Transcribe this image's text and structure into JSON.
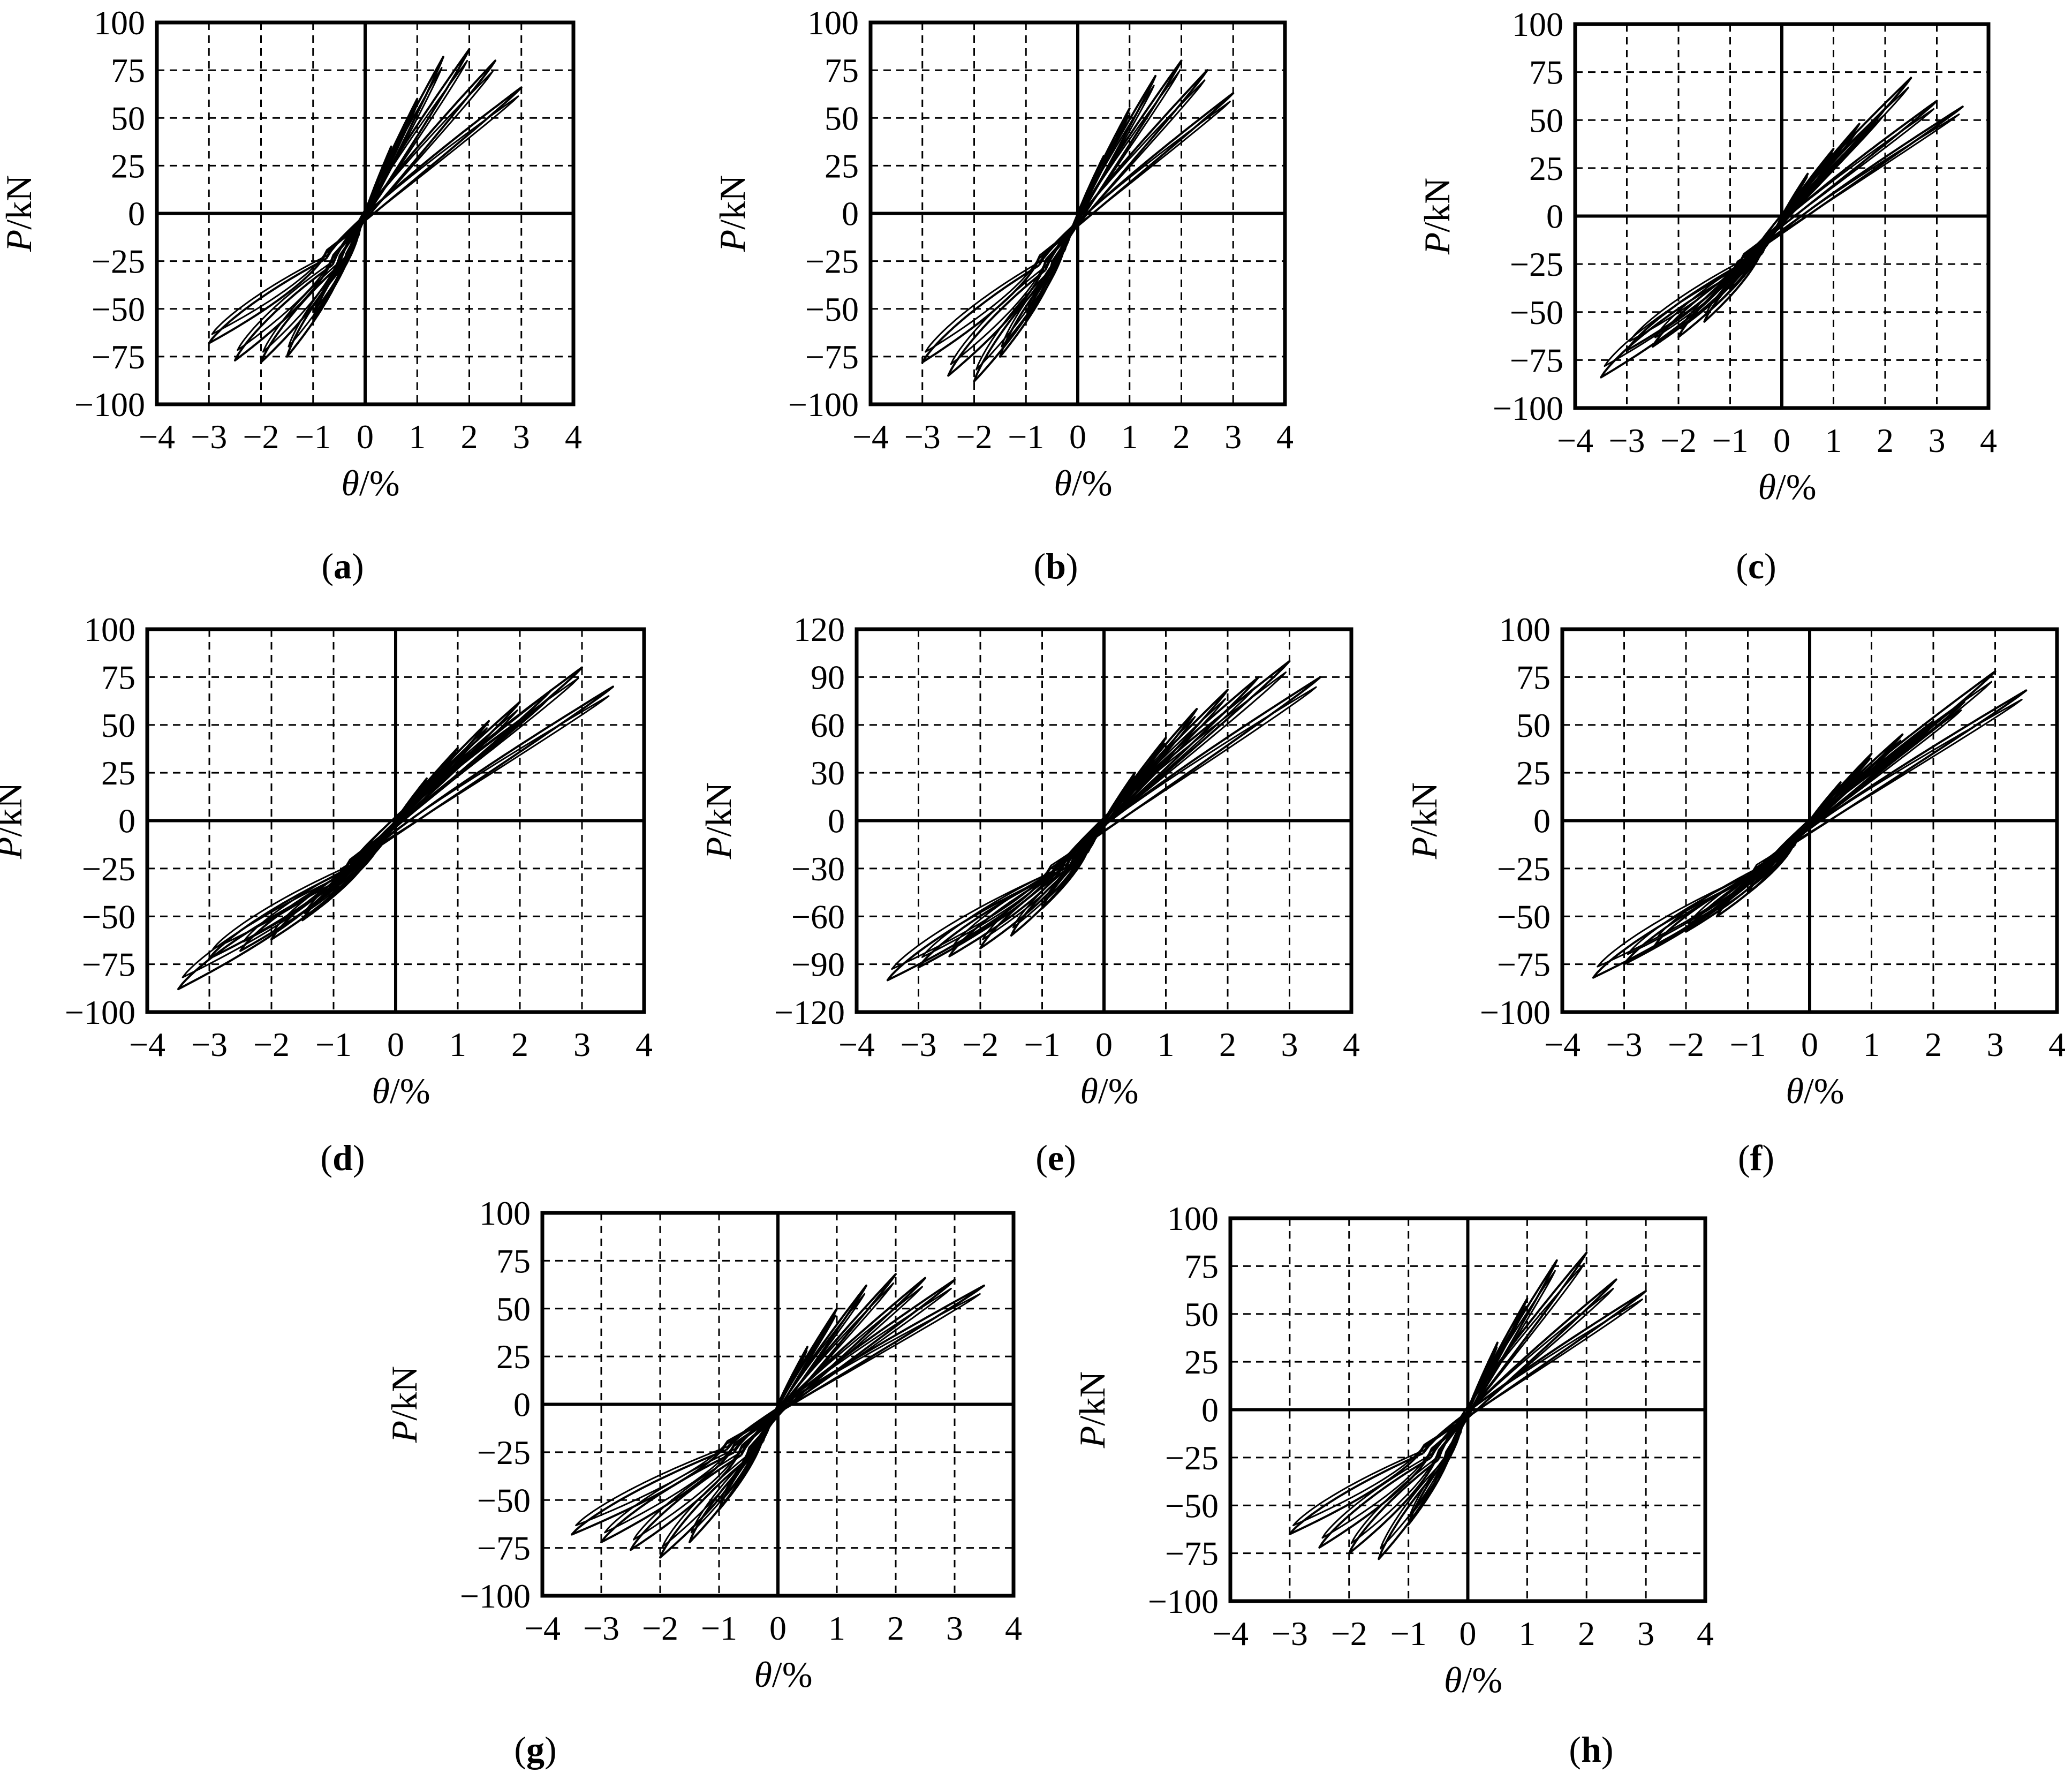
{
  "figure": {
    "panel_labels": [
      "(a)",
      "(b)",
      "(c)",
      "(d)",
      "(e)",
      "(f)",
      "(g)",
      "(h)"
    ]
  },
  "chart_data": [
    {
      "panel": "a",
      "type": "line",
      "xlabel": "θ/%",
      "ylabel": "P/kN",
      "xlim": [
        -4,
        4
      ],
      "ylim": [
        -100,
        100
      ],
      "xticks": [
        "−4",
        "−3",
        "−2",
        "−1",
        "0",
        "1",
        "2",
        "3",
        "4"
      ],
      "yticks": [
        "−100",
        "−75",
        "−50",
        "−25",
        "0",
        "25",
        "50",
        "75",
        "100"
      ],
      "grid": "dashed",
      "cycles": [
        {
          "amplitude": 0.5,
          "pmax": 35,
          "pmin": -33
        },
        {
          "amplitude": 1.0,
          "pmax": 60,
          "pmin": -55
        },
        {
          "amplitude": 1.5,
          "pmax": 82,
          "pmin": -75
        },
        {
          "amplitude": 2.0,
          "pmax": 86,
          "pmin": -78
        },
        {
          "amplitude": 2.5,
          "pmax": 80,
          "pmin": -77
        },
        {
          "amplitude": 3.0,
          "pmax": 66,
          "pmin": -68
        }
      ]
    },
    {
      "panel": "b",
      "type": "line",
      "xlabel": "θ/%",
      "ylabel": "P/kN",
      "xlim": [
        -4,
        4
      ],
      "ylim": [
        -100,
        100
      ],
      "xticks": [
        "−4",
        "−3",
        "−2",
        "−1",
        "0",
        "1",
        "2",
        "3",
        "4"
      ],
      "yticks": [
        "−100",
        "−75",
        "−50",
        "−25",
        "0",
        "25",
        "50",
        "75",
        "100"
      ],
      "grid": "dashed",
      "cycles": [
        {
          "amplitude": 0.5,
          "pmax": 30,
          "pmin": -30
        },
        {
          "amplitude": 1.0,
          "pmax": 55,
          "pmin": -55
        },
        {
          "amplitude": 1.5,
          "pmax": 72,
          "pmin": -75
        },
        {
          "amplitude": 2.0,
          "pmax": 80,
          "pmin": -88
        },
        {
          "amplitude": 2.5,
          "pmax": 75,
          "pmin": -85
        },
        {
          "amplitude": 3.0,
          "pmax": 63,
          "pmin": -78
        }
      ]
    },
    {
      "panel": "c",
      "type": "line",
      "xlabel": "θ/%",
      "ylabel": "P/kN",
      "xlim": [
        -4,
        4
      ],
      "ylim": [
        -100,
        100
      ],
      "xticks": [
        "−4",
        "−3",
        "−2",
        "−1",
        "0",
        "1",
        "2",
        "3",
        "4"
      ],
      "yticks": [
        "−100",
        "−75",
        "−50",
        "−25",
        "0",
        "25",
        "50",
        "75",
        "100"
      ],
      "grid": "dashed",
      "cycles": [
        {
          "amplitude": 0.5,
          "pmax": 22,
          "pmin": -22
        },
        {
          "amplitude": 1.0,
          "pmax": 35,
          "pmin": -38
        },
        {
          "amplitude": 1.5,
          "pmax": 48,
          "pmin": -55
        },
        {
          "amplitude": 2.0,
          "pmax": 56,
          "pmin": -63
        },
        {
          "amplitude": 2.5,
          "pmax": 72,
          "pmin": -68
        },
        {
          "amplitude": 3.0,
          "pmax": 60,
          "pmin": -70
        },
        {
          "amplitude": 3.5,
          "pmax": 57,
          "pmin": -84
        }
      ]
    },
    {
      "panel": "d",
      "type": "line",
      "xlabel": "θ/%",
      "ylabel": "P/kN",
      "xlim": [
        -4,
        4
      ],
      "ylim": [
        -100,
        100
      ],
      "xticks": [
        "−4",
        "−3",
        "−2",
        "−1",
        "0",
        "1",
        "2",
        "3",
        "4"
      ],
      "yticks": [
        "−100",
        "−75",
        "−50",
        "−25",
        "0",
        "25",
        "50",
        "75",
        "100"
      ],
      "grid": "dashed",
      "cycles": [
        {
          "amplitude": 0.5,
          "pmax": 22,
          "pmin": -22
        },
        {
          "amplitude": 1.0,
          "pmax": 38,
          "pmin": -38
        },
        {
          "amplitude": 1.5,
          "pmax": 52,
          "pmin": -52
        },
        {
          "amplitude": 2.0,
          "pmax": 62,
          "pmin": -62
        },
        {
          "amplitude": 2.5,
          "pmax": 68,
          "pmin": -68
        },
        {
          "amplitude": 3.0,
          "pmax": 80,
          "pmin": -72
        },
        {
          "amplitude": 3.5,
          "pmax": 70,
          "pmin": -88
        }
      ]
    },
    {
      "panel": "e",
      "type": "line",
      "xlabel": "θ/%",
      "ylabel": "P/kN",
      "xlim": [
        -4,
        4
      ],
      "ylim": [
        -120,
        120
      ],
      "xticks": [
        "−4",
        "−3",
        "−2",
        "−1",
        "0",
        "1",
        "2",
        "3",
        "4"
      ],
      "yticks": [
        "−120",
        "−90",
        "−60",
        "−30",
        "0",
        "30",
        "60",
        "90",
        "120"
      ],
      "grid": "dashed",
      "cycles": [
        {
          "amplitude": 0.5,
          "pmax": 30,
          "pmin": -30
        },
        {
          "amplitude": 1.0,
          "pmax": 52,
          "pmin": -55
        },
        {
          "amplitude": 1.5,
          "pmax": 70,
          "pmin": -72
        },
        {
          "amplitude": 2.0,
          "pmax": 82,
          "pmin": -80
        },
        {
          "amplitude": 2.5,
          "pmax": 90,
          "pmin": -85
        },
        {
          "amplitude": 3.0,
          "pmax": 100,
          "pmin": -92
        },
        {
          "amplitude": 3.5,
          "pmax": 90,
          "pmin": -100
        }
      ]
    },
    {
      "panel": "f",
      "type": "line",
      "xlabel": "θ/%",
      "ylabel": "P/kN",
      "xlim": [
        -4,
        4
      ],
      "ylim": [
        -100,
        100
      ],
      "xticks": [
        "−4",
        "−3",
        "−2",
        "−1",
        "0",
        "1",
        "2",
        "3",
        "4"
      ],
      "yticks": [
        "−100",
        "−75",
        "−50",
        "−25",
        "0",
        "25",
        "50",
        "75",
        "100"
      ],
      "grid": "dashed",
      "cycles": [
        {
          "amplitude": 0.5,
          "pmax": 20,
          "pmin": -20
        },
        {
          "amplitude": 1.0,
          "pmax": 35,
          "pmin": -38
        },
        {
          "amplitude": 1.5,
          "pmax": 45,
          "pmin": -50
        },
        {
          "amplitude": 2.0,
          "pmax": 52,
          "pmin": -58
        },
        {
          "amplitude": 2.5,
          "pmax": 62,
          "pmin": -65
        },
        {
          "amplitude": 3.0,
          "pmax": 78,
          "pmin": -75
        },
        {
          "amplitude": 3.5,
          "pmax": 68,
          "pmin": -82
        }
      ]
    },
    {
      "panel": "g",
      "type": "line",
      "xlabel": "θ/%",
      "ylabel": "P/kN",
      "xlim": [
        -4,
        4
      ],
      "ylim": [
        -100,
        100
      ],
      "xticks": [
        "−4",
        "−3",
        "−2",
        "−1",
        "0",
        "1",
        "2",
        "3",
        "4"
      ],
      "yticks": [
        "−100",
        "−75",
        "−50",
        "−25",
        "0",
        "25",
        "50",
        "75",
        "100"
      ],
      "grid": "dashed",
      "cycles": [
        {
          "amplitude": 0.5,
          "pmax": 30,
          "pmin": -30
        },
        {
          "amplitude": 1.0,
          "pmax": 50,
          "pmin": -55
        },
        {
          "amplitude": 1.5,
          "pmax": 62,
          "pmin": -72
        },
        {
          "amplitude": 2.0,
          "pmax": 68,
          "pmin": -80
        },
        {
          "amplitude": 2.5,
          "pmax": 66,
          "pmin": -76
        },
        {
          "amplitude": 3.0,
          "pmax": 65,
          "pmin": -72
        },
        {
          "amplitude": 3.5,
          "pmax": 62,
          "pmin": -68
        }
      ]
    },
    {
      "panel": "h",
      "type": "line",
      "xlabel": "θ/%",
      "ylabel": "P/kN",
      "xlim": [
        -4,
        4
      ],
      "ylim": [
        -100,
        100
      ],
      "xticks": [
        "−4",
        "−3",
        "−2",
        "−1",
        "0",
        "1",
        "2",
        "3",
        "4"
      ],
      "yticks": [
        "−100",
        "−75",
        "−50",
        "−25",
        "0",
        "25",
        "50",
        "75",
        "100"
      ],
      "grid": "dashed",
      "cycles": [
        {
          "amplitude": 0.5,
          "pmax": 35,
          "pmin": -35
        },
        {
          "amplitude": 1.0,
          "pmax": 58,
          "pmin": -60
        },
        {
          "amplitude": 1.5,
          "pmax": 78,
          "pmin": -78
        },
        {
          "amplitude": 2.0,
          "pmax": 82,
          "pmin": -75
        },
        {
          "amplitude": 2.5,
          "pmax": 68,
          "pmin": -72
        },
        {
          "amplitude": 3.0,
          "pmax": 62,
          "pmin": -65
        }
      ]
    }
  ]
}
